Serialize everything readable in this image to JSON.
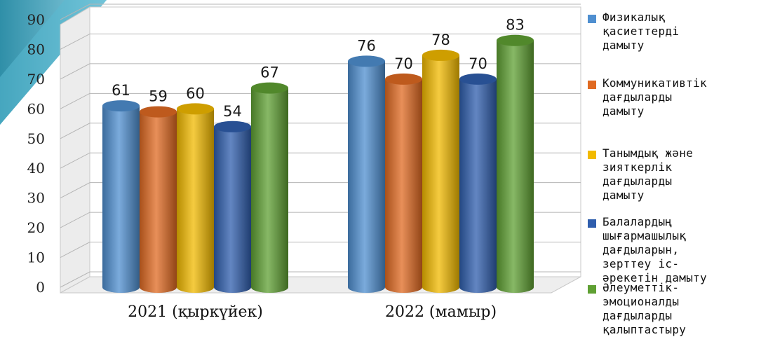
{
  "chart_data": {
    "type": "bar",
    "categories": [
      "2021 (қыркүйек)",
      "2022 (мамыр)"
    ],
    "series": [
      {
        "name": "Физикалық қасиеттерді дамыту",
        "color": "#4f8fd0",
        "values": [
          61,
          76
        ]
      },
      {
        "name": "Коммуникативтік дағдыларды дамыту",
        "color": "#e06a22",
        "values": [
          59,
          70
        ]
      },
      {
        "name": "Танымдық және зияткерлік дағдыларды дамыту",
        "color": "#f2ba00",
        "values": [
          60,
          78
        ]
      },
      {
        "name": "Балалардың шығармашылық дағдыларын, зерттеу іс-әрекетін дамыту",
        "color": "#2f5ead",
        "values": [
          54,
          70
        ]
      },
      {
        "name": "Әлеуметтік-эмоционалды дағдыларды қалыптастыру",
        "color": "#5fa033",
        "values": [
          67,
          83
        ]
      }
    ],
    "yticks": [
      0,
      10,
      20,
      30,
      40,
      50,
      60,
      70,
      80,
      90
    ],
    "ylim": [
      0,
      90
    ],
    "grid": true,
    "legend_position": "right",
    "data_labels": true,
    "title": "",
    "xlabel": "",
    "ylabel": ""
  },
  "legend_lines": [
    [
      "Физикалық",
      "қасиеттерді",
      "дамыту"
    ],
    [
      "Коммуникативтік",
      "дағдыларды",
      "дамыту"
    ],
    [
      "Танымдық және",
      "зияткерлік",
      "дағдыларды",
      "дамыту"
    ],
    [
      "Балалардың",
      "шығармашылық",
      "дағдыларын,",
      "зерттеу іс-",
      "әрекетін дамыту"
    ],
    [
      "Әлеуметтік-",
      "эмоционалды",
      "дағдыларды",
      "қалыптастыру"
    ]
  ]
}
